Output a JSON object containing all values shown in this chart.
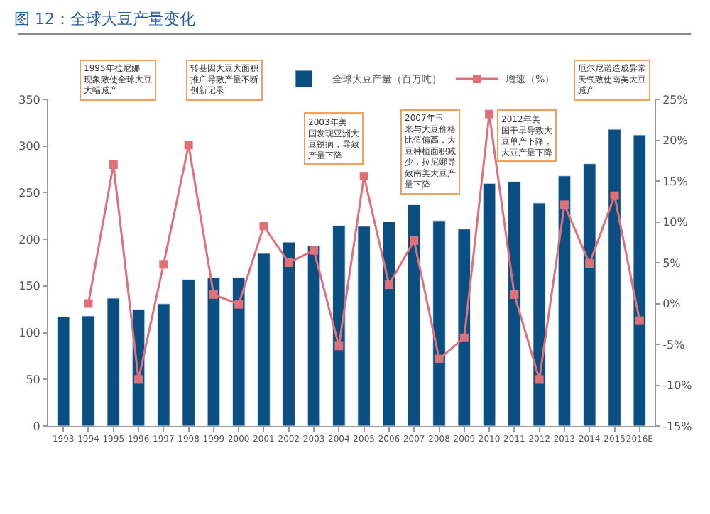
{
  "chart_data": {
    "type": "bar",
    "title": "图 12：全球大豆产量变化",
    "categories": [
      "1993",
      "1994",
      "1995",
      "1996",
      "1997",
      "1998",
      "1999",
      "2000",
      "2001",
      "2002",
      "2003",
      "2004",
      "2005",
      "2006",
      "2007",
      "2008",
      "2009",
      "2010",
      "2011",
      "2012",
      "2013",
      "2014",
      "2015",
      "2016E"
    ],
    "series": [
      {
        "name": "全球大豆产量（百万吨）",
        "color": "#0b4f82",
        "values": [
          117,
          118,
          137,
          125,
          131,
          157,
          159,
          159,
          185,
          197,
          193,
          215,
          214,
          219,
          237,
          220,
          211,
          260,
          262,
          239,
          268,
          281,
          318,
          312
        ]
      },
      {
        "name": "增速（%）",
        "type": "line",
        "axis": "y2",
        "color": "#e07078",
        "marker": "square",
        "values": [
          null,
          0.0,
          17.0,
          -9.3,
          4.8,
          19.4,
          1.1,
          -0.1,
          9.5,
          5.0,
          6.5,
          -5.2,
          15.6,
          2.3,
          7.7,
          -6.8,
          -4.2,
          23.2,
          1.1,
          -9.3,
          12.1,
          4.9,
          13.2,
          -2.1
        ]
      }
    ],
    "ylim": [
      0,
      350
    ],
    "yticks": [
      0,
      50,
      100,
      150,
      200,
      250,
      300,
      350
    ],
    "y2lim": [
      -15,
      25
    ],
    "y2ticks": [
      {
        "value": -15,
        "label": "-15%"
      },
      {
        "value": -10,
        "label": "-10%"
      },
      {
        "value": -5,
        "label": "-5%"
      },
      {
        "value": 0,
        "label": "0%"
      },
      {
        "value": 5,
        "label": "5%"
      },
      {
        "value": 10,
        "label": "10%"
      },
      {
        "value": 15,
        "label": "15%"
      },
      {
        "value": 20,
        "label": "20%"
      },
      {
        "value": 25,
        "label": "25%"
      }
    ],
    "annotations": [
      "1995年拉尼娜现象致使全球大豆大幅减产",
      "转基因大豆大面积推广导致产量不断创新记录",
      "2003年美国发现亚洲大豆锈病，导致产量下降",
      "2007年玉米与大豆价格比值偏高，大豆种植面积减少，拉尼娜导致南美大豆产量下降",
      "2012年美国干旱导致大豆单产下降，大豆产量下降",
      "厄尔尼诺造成异常天气致使南美大豆减产"
    ],
    "legend": "top right"
  }
}
